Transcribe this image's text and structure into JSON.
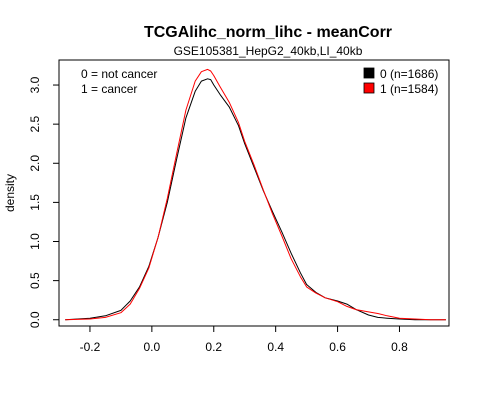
{
  "chart_data": {
    "type": "line",
    "title": "TCGAlihc_norm_lihc - meanCorr",
    "subtitle": "GSE105381_HepG2_40kb,LI_40kb",
    "xlabel": "",
    "ylabel": "density",
    "xlim": [
      -0.3,
      0.96
    ],
    "ylim": [
      -0.08,
      3.32
    ],
    "xticks": [
      -0.2,
      0.0,
      0.2,
      0.4,
      0.6,
      0.8
    ],
    "xtick_labels": [
      "-0.2",
      "0.0",
      "0.2",
      "0.4",
      "0.6",
      "0.8"
    ],
    "yticks": [
      0.0,
      0.5,
      1.0,
      1.5,
      2.0,
      2.5,
      3.0
    ],
    "ytick_labels": [
      "0.0",
      "0.5",
      "1.0",
      "1.5",
      "2.0",
      "2.5",
      "3.0"
    ],
    "grid": false,
    "annotations": [
      "0 = not cancer",
      "1 = cancer"
    ],
    "legend": {
      "position": "top-right",
      "entries": [
        "0 (n=1686)",
        "1 (n=1584)"
      ]
    },
    "series": [
      {
        "name": "0 (n=1686)",
        "color": "#000000",
        "x": [
          -0.28,
          -0.2,
          -0.15,
          -0.1,
          -0.07,
          -0.04,
          -0.01,
          0.02,
          0.05,
          0.08,
          0.11,
          0.14,
          0.16,
          0.18,
          0.19,
          0.2,
          0.22,
          0.25,
          0.28,
          0.3,
          0.33,
          0.36,
          0.39,
          0.42,
          0.45,
          0.48,
          0.5,
          0.53,
          0.56,
          0.6,
          0.63,
          0.66,
          0.7,
          0.73,
          0.76,
          0.8,
          0.85,
          0.9,
          0.95
        ],
        "y": [
          0.0,
          0.02,
          0.05,
          0.12,
          0.24,
          0.42,
          0.68,
          1.05,
          1.5,
          2.05,
          2.58,
          2.92,
          3.05,
          3.08,
          3.07,
          3.0,
          2.88,
          2.72,
          2.48,
          2.25,
          1.95,
          1.65,
          1.38,
          1.12,
          0.85,
          0.6,
          0.45,
          0.35,
          0.28,
          0.24,
          0.2,
          0.13,
          0.06,
          0.03,
          0.02,
          0.01,
          0.0,
          0.0,
          0.0
        ]
      },
      {
        "name": "1 (n=1584)",
        "color": "#ff0000",
        "x": [
          -0.28,
          -0.2,
          -0.15,
          -0.1,
          -0.07,
          -0.04,
          -0.01,
          0.02,
          0.05,
          0.08,
          0.11,
          0.14,
          0.16,
          0.18,
          0.19,
          0.2,
          0.22,
          0.25,
          0.28,
          0.3,
          0.33,
          0.36,
          0.39,
          0.42,
          0.45,
          0.48,
          0.5,
          0.53,
          0.56,
          0.6,
          0.63,
          0.66,
          0.7,
          0.73,
          0.76,
          0.8,
          0.85,
          0.9,
          0.95
        ],
        "y": [
          0.0,
          0.01,
          0.03,
          0.09,
          0.2,
          0.4,
          0.66,
          1.05,
          1.55,
          2.12,
          2.68,
          3.05,
          3.17,
          3.2,
          3.18,
          3.12,
          2.98,
          2.78,
          2.52,
          2.28,
          1.98,
          1.66,
          1.35,
          1.07,
          0.78,
          0.55,
          0.42,
          0.34,
          0.28,
          0.23,
          0.17,
          0.13,
          0.1,
          0.08,
          0.05,
          0.02,
          0.01,
          0.0,
          0.0
        ]
      }
    ]
  }
}
